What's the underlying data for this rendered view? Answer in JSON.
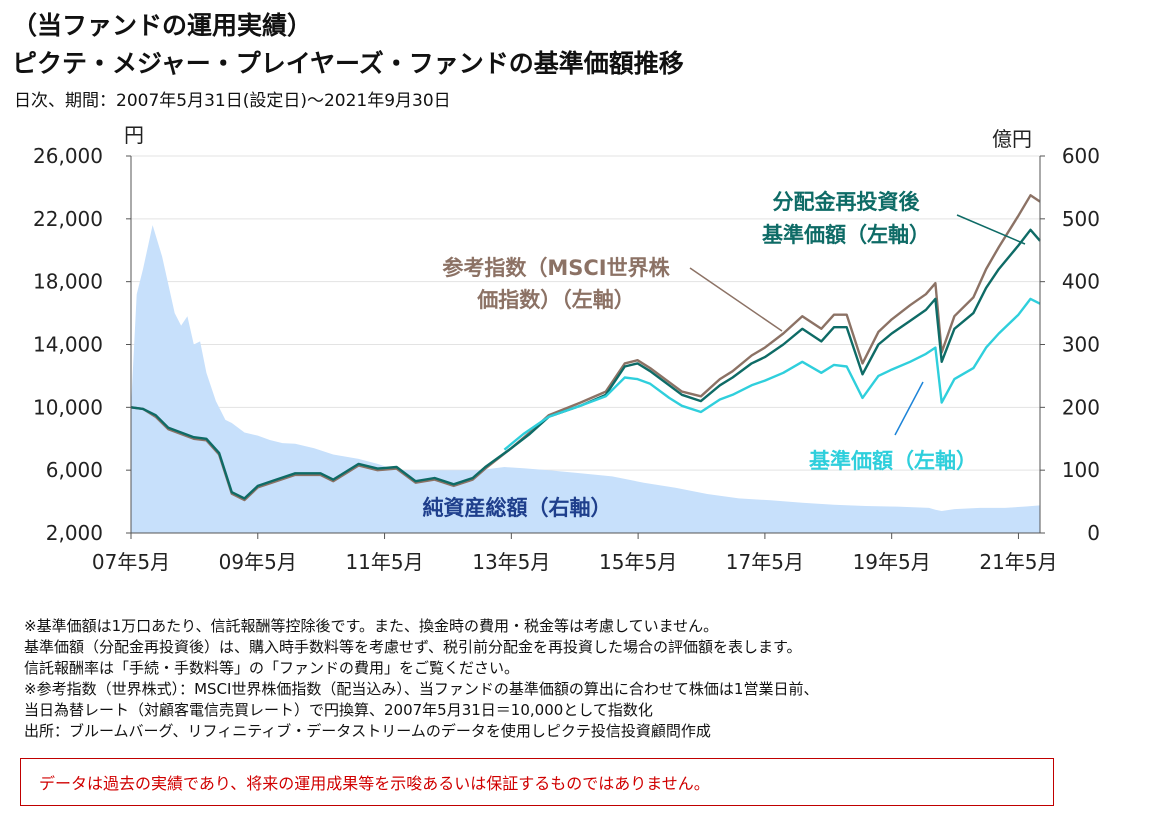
{
  "header": {
    "section": "（当ファンドの運用実績）",
    "title": "ピクテ・メジャー・プレイヤーズ・ファンドの基準価額推移",
    "subtitle": "日次、期間：2007年5月31日(設定日)～2021年9月30日"
  },
  "chart_data": {
    "type": "line",
    "left_axis": {
      "unit": "円",
      "ticks": [
        "2,000",
        "6,000",
        "10,000",
        "14,000",
        "18,000",
        "22,000",
        "26,000"
      ],
      "range": [
        2000,
        26000
      ]
    },
    "right_axis": {
      "unit": "億円",
      "ticks": [
        "0",
        "100",
        "200",
        "300",
        "400",
        "500",
        "600"
      ],
      "range": [
        0,
        600
      ]
    },
    "x_axis": {
      "ticks": [
        "07年5月",
        "09年5月",
        "11年5月",
        "13年5月",
        "15年5月",
        "17年5月",
        "19年5月",
        "21年5月"
      ],
      "range": [
        2007.41,
        2021.75
      ]
    },
    "grid": true,
    "series": [
      {
        "name": "純資産総額（右軸）",
        "axis": "right",
        "type": "area",
        "color": "#c7e0fb",
        "x": [
          2007.41,
          2007.5,
          2007.6,
          2007.75,
          2007.9,
          2008.0,
          2008.1,
          2008.2,
          2008.3,
          2008.4,
          2008.5,
          2008.6,
          2008.75,
          2008.9,
          2009.0,
          2009.2,
          2009.41,
          2009.6,
          2009.8,
          2010.0,
          2010.3,
          2010.6,
          2011.0,
          2011.3,
          2011.6,
          2011.9,
          2012.2,
          2012.5,
          2012.9,
          2013.3,
          2013.6,
          2014.0,
          2014.5,
          2015.0,
          2015.5,
          2016.0,
          2016.5,
          2017.0,
          2017.5,
          2018.0,
          2018.5,
          2019.0,
          2019.5,
          2020.0,
          2020.1,
          2020.2,
          2020.4,
          2020.8,
          2021.2,
          2021.5,
          2021.75
        ],
        "y": [
          200,
          380,
          420,
          490,
          440,
          395,
          350,
          330,
          345,
          300,
          305,
          255,
          210,
          180,
          175,
          160,
          155,
          148,
          143,
          142,
          135,
          125,
          118,
          110,
          100,
          100,
          100,
          100,
          100,
          105,
          103,
          100,
          95,
          90,
          80,
          72,
          62,
          55,
          52,
          48,
          45,
          43,
          42,
          40,
          37,
          35,
          38,
          40,
          40,
          42,
          44
        ]
      },
      {
        "name": "参考指数（MSCI世界株価指数）（左軸）",
        "axis": "left",
        "color": "#8c7265",
        "x": [
          2007.41,
          2007.6,
          2007.8,
          2008.0,
          2008.2,
          2008.4,
          2008.6,
          2008.8,
          2009.0,
          2009.2,
          2009.41,
          2009.7,
          2010.0,
          2010.4,
          2010.6,
          2011.0,
          2011.3,
          2011.6,
          2011.9,
          2012.2,
          2012.5,
          2012.8,
          2013.0,
          2013.41,
          2013.7,
          2014.0,
          2014.5,
          2014.9,
          2015.2,
          2015.4,
          2015.6,
          2015.9,
          2016.1,
          2016.4,
          2016.7,
          2016.9,
          2017.2,
          2017.41,
          2017.7,
          2018.0,
          2018.3,
          2018.5,
          2018.7,
          2018.95,
          2019.2,
          2019.41,
          2019.7,
          2019.95,
          2020.1,
          2020.2,
          2020.4,
          2020.7,
          2020.9,
          2021.1,
          2021.41,
          2021.6,
          2021.75
        ],
        "y": [
          10000,
          9900,
          9400,
          8600,
          8300,
          8000,
          7900,
          7000,
          4500,
          4100,
          4900,
          5300,
          5700,
          5700,
          5300,
          6300,
          6000,
          6100,
          5200,
          5400,
          5000,
          5400,
          6100,
          7400,
          8400,
          9500,
          10300,
          11000,
          12800,
          13000,
          12500,
          11600,
          11000,
          10700,
          11800,
          12300,
          13300,
          13800,
          14700,
          15800,
          15000,
          15900,
          15900,
          12800,
          14800,
          15600,
          16500,
          17200,
          17900,
          13500,
          15800,
          17000,
          18800,
          20200,
          22200,
          23500,
          23100
        ]
      },
      {
        "name": "分配金再投資後基準価額（左軸）",
        "axis": "left",
        "color": "#0e6b66",
        "x": [
          2007.41,
          2007.6,
          2007.8,
          2008.0,
          2008.2,
          2008.4,
          2008.6,
          2008.8,
          2009.0,
          2009.2,
          2009.41,
          2009.7,
          2010.0,
          2010.4,
          2010.6,
          2011.0,
          2011.3,
          2011.6,
          2011.9,
          2012.2,
          2012.5,
          2012.8,
          2013.0,
          2013.41,
          2013.7,
          2014.0,
          2014.5,
          2014.9,
          2015.2,
          2015.4,
          2015.6,
          2015.9,
          2016.1,
          2016.4,
          2016.7,
          2016.9,
          2017.2,
          2017.41,
          2017.7,
          2018.0,
          2018.3,
          2018.5,
          2018.7,
          2018.95,
          2019.2,
          2019.41,
          2019.7,
          2019.95,
          2020.1,
          2020.2,
          2020.4,
          2020.7,
          2020.9,
          2021.1,
          2021.41,
          2021.6,
          2021.75
        ],
        "y": [
          10000,
          9900,
          9500,
          8700,
          8400,
          8100,
          8000,
          7100,
          4600,
          4200,
          5000,
          5400,
          5800,
          5800,
          5400,
          6400,
          6100,
          6200,
          5300,
          5500,
          5100,
          5500,
          6200,
          7400,
          8300,
          9400,
          10100,
          10800,
          12600,
          12800,
          12300,
          11400,
          10800,
          10400,
          11400,
          11900,
          12800,
          13200,
          14000,
          15000,
          14200,
          15100,
          15100,
          12100,
          14000,
          14700,
          15500,
          16200,
          16900,
          12900,
          15000,
          16000,
          17600,
          18800,
          20300,
          21300,
          20600
        ]
      },
      {
        "name": "基準価額（左軸）",
        "axis": "left",
        "color": "#2fcfdc",
        "x": [
          2013.3,
          2013.6,
          2014.0,
          2014.5,
          2014.9,
          2015.2,
          2015.4,
          2015.6,
          2015.9,
          2016.1,
          2016.4,
          2016.7,
          2016.9,
          2017.2,
          2017.41,
          2017.7,
          2018.0,
          2018.3,
          2018.5,
          2018.7,
          2018.95,
          2019.2,
          2019.41,
          2019.7,
          2019.95,
          2020.1,
          2020.2,
          2020.4,
          2020.7,
          2020.9,
          2021.1,
          2021.41,
          2021.6,
          2021.75
        ],
        "y": [
          7300,
          8300,
          9400,
          10100,
          10700,
          11900,
          11800,
          11500,
          10600,
          10100,
          9700,
          10500,
          10800,
          11400,
          11700,
          12200,
          12900,
          12200,
          12700,
          12600,
          10600,
          12000,
          12400,
          12900,
          13400,
          13800,
          10300,
          11800,
          12500,
          13800,
          14700,
          15900,
          16900,
          16600
        ]
      }
    ],
    "annotations": [
      {
        "text": "分配金再投資後",
        "color": "#0e6b66"
      },
      {
        "text": "基準価額（左軸）",
        "color": "#0e6b66"
      },
      {
        "text": "参考指数（MSCI世界株",
        "color": "#8c7265"
      },
      {
        "text": "価指数）（左軸）",
        "color": "#8c7265"
      },
      {
        "text": "基準価額（左軸）",
        "color": "#2fcfdc"
      },
      {
        "text": "純資産総額（右軸）",
        "color": "#1f3f8c"
      }
    ]
  },
  "notes": [
    "※基準価額は1万口あたり、信託報酬等控除後です。また、換金時の費用・税金等は考慮していません。",
    "基準価額（分配金再投資後）は、購入時手数料等を考慮せず、税引前分配金を再投資した場合の評価額を表します。",
    "信託報酬率は「手続・手数料等」の「ファンドの費用」をご覧ください。",
    "※参考指数（世界株式）：MSCI世界株価指数（配当込み）、当ファンドの基準価額の算出に合わせて株価は1営業日前、",
    "当日為替レート（対顧客電信売買レート）で円換算、2007年5月31日＝10,000として指数化",
    "出所：ブルームバーグ、リフィニティブ・データストリームのデータを使用しピクテ投信投資顧問作成"
  ],
  "disclaimer": "データは過去の実績であり、将来の運用成果等を示唆あるいは保証するものではありません。"
}
